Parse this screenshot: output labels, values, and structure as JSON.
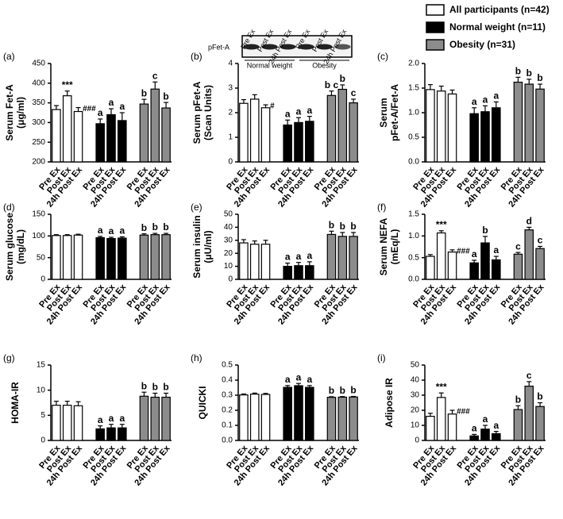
{
  "legend": [
    {
      "name": "All participants (n=42)",
      "color": "#ffffff"
    },
    {
      "name": "Normal weight (n=11)",
      "color": "#000000"
    },
    {
      "name": "Obesity (n=31)",
      "color": "#8c8c8c"
    }
  ],
  "blot": {
    "label": "pFet-A",
    "lanes": [
      "Pre Ex",
      "Post Ex",
      "24h Post Ex",
      "Pre Ex",
      "Post Ex",
      "24h Post Ex"
    ],
    "groups": [
      "Normal weight",
      "Obesity"
    ]
  },
  "chart_data": [
    {
      "type": "bar",
      "panel": "(a)",
      "ylabel": [
        "Serum Fet-A",
        "(μg/ml)"
      ],
      "categories": [
        "Pre Ex",
        "Post Ex",
        "24h Post Ex"
      ],
      "ylim": [
        200,
        450
      ],
      "yticks": [
        200,
        250,
        300,
        350,
        400,
        450
      ],
      "series": [
        {
          "values": [
            333,
            368,
            328
          ],
          "errors": [
            10,
            12,
            10
          ],
          "annotations": [
            null,
            "***",
            "###"
          ]
        },
        {
          "values": [
            297,
            320,
            305
          ],
          "errors": [
            12,
            15,
            20
          ],
          "annotations": [
            "a",
            "a",
            "a"
          ]
        },
        {
          "values": [
            347,
            385,
            337
          ],
          "errors": [
            12,
            18,
            14
          ],
          "annotations": [
            "b",
            "c",
            "b"
          ]
        }
      ]
    },
    {
      "type": "bar",
      "panel": "(b)",
      "ylabel": [
        "Serum pFet-A",
        "(Scan Units)"
      ],
      "categories": [
        "Pre Ex",
        "Post Ex",
        "24h Post Ex"
      ],
      "ylim": [
        0,
        4
      ],
      "yticks": [
        0,
        1,
        2,
        3,
        4
      ],
      "series": [
        {
          "values": [
            2.38,
            2.55,
            2.2
          ],
          "errors": [
            0.15,
            0.18,
            0.12
          ],
          "annotations": [
            null,
            null,
            "#"
          ]
        },
        {
          "values": [
            1.5,
            1.6,
            1.65
          ],
          "errors": [
            0.2,
            0.2,
            0.2
          ],
          "annotations": [
            "a",
            "a",
            "a"
          ]
        },
        {
          "values": [
            2.7,
            2.95,
            2.4
          ],
          "errors": [
            0.18,
            0.18,
            0.15
          ],
          "annotations": [
            "b c",
            "b",
            "c"
          ]
        }
      ]
    },
    {
      "type": "bar",
      "panel": "(c)",
      "ylabel": [
        "Serum",
        "pFet-A/Fet-A"
      ],
      "categories": [
        "Pre Ex",
        "Post Ex",
        "24h Post Ex"
      ],
      "ylim": [
        0,
        2
      ],
      "yticks": [
        {
          "value": 0,
          "label": "0.0"
        },
        {
          "value": 0.5,
          "label": "0.5"
        },
        {
          "value": 1,
          "label": "1.0"
        },
        {
          "value": 1.5,
          "label": "1.5"
        },
        {
          "value": 2,
          "label": "2.0"
        }
      ],
      "series": [
        {
          "values": [
            1.47,
            1.44,
            1.38
          ],
          "errors": [
            0.1,
            0.1,
            0.08
          ],
          "annotations": [
            null,
            null,
            null
          ]
        },
        {
          "values": [
            0.98,
            1.02,
            1.1
          ],
          "errors": [
            0.12,
            0.12,
            0.12
          ],
          "annotations": [
            "a",
            "a",
            "a"
          ]
        },
        {
          "values": [
            1.62,
            1.58,
            1.48
          ],
          "errors": [
            0.1,
            0.1,
            0.1
          ],
          "annotations": [
            "b",
            "b",
            "b"
          ]
        }
      ]
    },
    {
      "type": "bar",
      "panel": "(d)",
      "ylabel": [
        "Serum glucose",
        "(mg/dL)"
      ],
      "categories": [
        "Pre Ex",
        "Post Ex",
        "24h Post Ex"
      ],
      "ylim": [
        0,
        150
      ],
      "yticks": [
        0,
        50,
        100,
        150
      ],
      "series": [
        {
          "values": [
            101,
            101,
            102
          ],
          "errors": [
            2,
            2,
            2
          ],
          "annotations": [
            null,
            null,
            null
          ]
        },
        {
          "values": [
            96,
            94,
            95
          ],
          "errors": [
            3,
            3,
            3
          ],
          "annotations": [
            "a",
            "a",
            "a"
          ]
        },
        {
          "values": [
            102,
            103,
            103
          ],
          "errors": [
            3,
            3,
            3
          ],
          "annotations": [
            "b",
            "b",
            "b"
          ]
        }
      ]
    },
    {
      "type": "bar",
      "panel": "(e)",
      "ylabel": [
        "Serum insulin",
        "(μU/ml)"
      ],
      "categories": [
        "Pre Ex",
        "Post Ex",
        "24h Post Ex"
      ],
      "ylim": [
        0,
        50
      ],
      "yticks": [
        0,
        10,
        20,
        30,
        40,
        50
      ],
      "series": [
        {
          "values": [
            28,
            27,
            27
          ],
          "errors": [
            2.5,
            2.5,
            3
          ],
          "annotations": [
            null,
            null,
            null
          ]
        },
        {
          "values": [
            10,
            10.5,
            10.5
          ],
          "errors": [
            2.5,
            2.5,
            3
          ],
          "annotations": [
            "a",
            "a",
            "a"
          ]
        },
        {
          "values": [
            34.5,
            33,
            33
          ],
          "errors": [
            2.5,
            3,
            3
          ],
          "annotations": [
            "b",
            "b",
            "b"
          ]
        }
      ]
    },
    {
      "type": "bar",
      "panel": "(f)",
      "ylabel": [
        "Serum NEFA",
        "(mEq/L)"
      ],
      "categories": [
        "Pre Ex",
        "Post Ex",
        "24h Post Ex"
      ],
      "ylim": [
        0,
        1.5
      ],
      "yticks": [
        {
          "value": 0,
          "label": "0.0"
        },
        {
          "value": 0.5,
          "label": "0.5"
        },
        {
          "value": 1,
          "label": "1.0"
        },
        {
          "value": 1.5,
          "label": "1.5"
        }
      ],
      "series": [
        {
          "values": [
            0.53,
            1.07,
            0.63
          ],
          "errors": [
            0.04,
            0.05,
            0.05
          ],
          "annotations": [
            null,
            "***",
            "###"
          ]
        },
        {
          "values": [
            0.38,
            0.84,
            0.45
          ],
          "errors": [
            0.06,
            0.15,
            0.08
          ],
          "annotations": [
            "a",
            "b",
            "a"
          ]
        },
        {
          "values": [
            0.58,
            1.14,
            0.71
          ],
          "errors": [
            0.04,
            0.06,
            0.05
          ],
          "annotations": [
            "c",
            "d",
            "c"
          ]
        }
      ]
    },
    {
      "type": "bar",
      "panel": "(g)",
      "ylabel": [
        "HOMA-IR"
      ],
      "categories": [
        "Pre Ex",
        "Post Ex",
        "24h Post Ex"
      ],
      "ylim": [
        0,
        15
      ],
      "yticks": [
        0,
        5,
        10,
        15
      ],
      "series": [
        {
          "values": [
            7,
            7,
            6.9
          ],
          "errors": [
            0.8,
            0.8,
            0.8
          ],
          "annotations": [
            null,
            null,
            null
          ]
        },
        {
          "values": [
            2.3,
            2.5,
            2.5
          ],
          "errors": [
            0.6,
            0.7,
            0.7
          ],
          "annotations": [
            "a",
            "a",
            "a"
          ]
        },
        {
          "values": [
            8.8,
            8.6,
            8.6
          ],
          "errors": [
            0.8,
            0.8,
            0.8
          ],
          "annotations": [
            "b",
            "b",
            "b"
          ]
        }
      ]
    },
    {
      "type": "bar",
      "panel": "(h)",
      "ylabel": [
        "QUICKI"
      ],
      "categories": [
        "Pre Ex",
        "Post Ex",
        "24h Post Ex"
      ],
      "ylim": [
        0,
        0.5
      ],
      "yticks": [
        {
          "value": 0,
          "label": "0.0"
        },
        0.1,
        0.2,
        0.3,
        0.4,
        0.5
      ],
      "series": [
        {
          "values": [
            0.302,
            0.307,
            0.305
          ],
          "errors": [
            0.006,
            0.007,
            0.007
          ],
          "annotations": [
            null,
            null,
            null
          ]
        },
        {
          "values": [
            0.352,
            0.363,
            0.352
          ],
          "errors": [
            0.012,
            0.015,
            0.012
          ],
          "annotations": [
            "a",
            "a",
            "a"
          ]
        },
        {
          "values": [
            0.286,
            0.287,
            0.288
          ],
          "errors": [
            0.004,
            0.004,
            0.004
          ],
          "annotations": [
            "b",
            "b",
            "b"
          ]
        }
      ]
    },
    {
      "type": "bar",
      "panel": "(i)",
      "ylabel": [
        "Adipose IR"
      ],
      "categories": [
        "Pre Ex",
        "Post Ex",
        "24h Post Ex"
      ],
      "ylim": [
        0,
        50
      ],
      "yticks": [
        0,
        10,
        20,
        30,
        40,
        50
      ],
      "series": [
        {
          "values": [
            16,
            28.5,
            17.5
          ],
          "errors": [
            2,
            3,
            2.5
          ],
          "annotations": [
            null,
            "***",
            "###"
          ]
        },
        {
          "values": [
            3,
            7.5,
            4.5
          ],
          "errors": [
            1,
            2.5,
            1.5
          ],
          "annotations": [
            "a",
            "a",
            "a"
          ]
        },
        {
          "values": [
            20.5,
            36,
            22.5
          ],
          "errors": [
            2.5,
            3,
            2.5
          ],
          "annotations": [
            "b",
            "c",
            "b"
          ]
        }
      ]
    }
  ]
}
